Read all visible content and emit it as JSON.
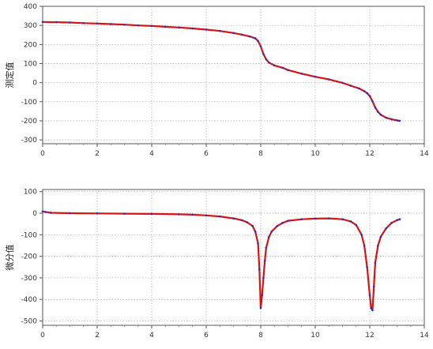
{
  "chart_data": [
    {
      "type": "line",
      "ylabel": "测定值",
      "xlim": [
        0,
        14
      ],
      "ylim": [
        -320,
        400
      ],
      "x_ticks": [
        "0",
        "2",
        "4",
        "6",
        "8",
        "10",
        "12",
        "14"
      ],
      "y_ticks": [
        "400",
        "300",
        "200",
        "100",
        "0",
        "-100",
        "-200",
        "-300"
      ],
      "grid": true,
      "series": [
        {
          "color": "#dd1111",
          "marker_color": "#2233cc",
          "x": [
            0.0,
            0.5,
            1.0,
            1.5,
            2.0,
            2.5,
            3.0,
            3.5,
            4.0,
            4.5,
            5.0,
            5.5,
            6.0,
            6.5,
            7.0,
            7.3,
            7.6,
            7.8,
            7.9,
            8.0,
            8.1,
            8.2,
            8.3,
            8.5,
            8.8,
            9.0,
            9.5,
            10.0,
            10.5,
            11.0,
            11.3,
            11.6,
            11.8,
            11.9,
            12.0,
            12.1,
            12.2,
            12.3,
            12.4,
            12.6,
            12.8,
            13.0,
            13.1
          ],
          "y": [
            318,
            317,
            315,
            312,
            310,
            307,
            304,
            300,
            297,
            293,
            289,
            284,
            278,
            271,
            260,
            252,
            242,
            232,
            218,
            190,
            150,
            122,
            105,
            90,
            78,
            66,
            47,
            31,
            17,
            -1,
            -16,
            -30,
            -45,
            -55,
            -70,
            -98,
            -130,
            -153,
            -168,
            -184,
            -192,
            -198,
            -200
          ]
        }
      ]
    },
    {
      "type": "line",
      "ylabel": "微分值",
      "xlim": [
        0,
        14
      ],
      "ylim": [
        -520,
        110
      ],
      "x_ticks": [
        "0",
        "2",
        "4",
        "6",
        "8",
        "10",
        "12",
        "14"
      ],
      "y_ticks": [
        "100",
        "0",
        "-100",
        "-200",
        "-300",
        "-400",
        "-500"
      ],
      "grid": true,
      "series": [
        {
          "color": "#dd1111",
          "marker_color": "#2233cc",
          "x": [
            0.0,
            0.1,
            0.3,
            1.0,
            2.0,
            3.0,
            4.0,
            5.0,
            5.5,
            6.0,
            6.5,
            7.0,
            7.3,
            7.5,
            7.7,
            7.8,
            7.9,
            7.95,
            8.0,
            8.05,
            8.1,
            8.15,
            8.2,
            8.3,
            8.4,
            8.6,
            8.8,
            9.0,
            9.5,
            10.0,
            10.5,
            11.0,
            11.3,
            11.5,
            11.7,
            11.8,
            11.9,
            12.0,
            12.05,
            12.1,
            12.15,
            12.2,
            12.3,
            12.4,
            12.6,
            12.8,
            13.0,
            13.1
          ],
          "y": [
            8,
            6,
            2,
            0,
            -1,
            -2,
            -3,
            -5,
            -7,
            -10,
            -15,
            -24,
            -32,
            -42,
            -60,
            -85,
            -140,
            -260,
            -440,
            -380,
            -300,
            -220,
            -160,
            -110,
            -85,
            -60,
            -45,
            -35,
            -28,
            -25,
            -24,
            -28,
            -38,
            -55,
            -100,
            -150,
            -250,
            -380,
            -440,
            -450,
            -340,
            -230,
            -150,
            -110,
            -70,
            -45,
            -32,
            -28
          ]
        }
      ]
    }
  ]
}
